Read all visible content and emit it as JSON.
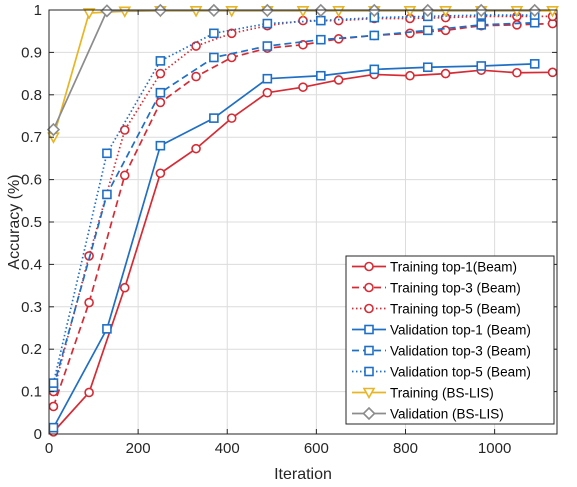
{
  "chart_data": {
    "type": "line",
    "xlabel": "Iteration",
    "ylabel": "Accuracy (%)",
    "xlim": [
      0,
      1140
    ],
    "ylim": [
      0,
      1
    ],
    "xticks": [
      0,
      200,
      400,
      600,
      800,
      1000
    ],
    "yticks": [
      0,
      0.1,
      0.2,
      0.3,
      0.4,
      0.5,
      0.6,
      0.7,
      0.8,
      0.9,
      1
    ],
    "grid": true,
    "legend_position": "bottom-right",
    "colors": {
      "training_beam": "#d62b34",
      "validation_beam": "#1f6fc4",
      "training_bslis": "#e8b523",
      "validation_bslis": "#8c8c8c"
    },
    "series": [
      {
        "name": "Training top-1(Beam)",
        "color": "#d62b34",
        "line_style": "solid",
        "marker": "circle",
        "x": [
          10,
          90,
          170,
          250,
          330,
          410,
          490,
          570,
          650,
          730,
          810,
          890,
          970,
          1050,
          1130
        ],
        "y": [
          0.005,
          0.098,
          0.345,
          0.615,
          0.673,
          0.745,
          0.805,
          0.818,
          0.835,
          0.848,
          0.845,
          0.85,
          0.858,
          0.852,
          0.853
        ]
      },
      {
        "name": "Training top-3 (Beam)",
        "color": "#d62b34",
        "line_style": "dashed",
        "marker": "circle",
        "x": [
          10,
          90,
          170,
          250,
          330,
          410,
          490,
          570,
          650,
          730,
          810,
          890,
          970,
          1050,
          1130
        ],
        "y": [
          0.065,
          0.31,
          0.61,
          0.782,
          0.843,
          0.888,
          0.91,
          0.918,
          0.932,
          0.94,
          0.945,
          0.952,
          0.963,
          0.965,
          0.968
        ]
      },
      {
        "name": "Training top-5 (Beam)",
        "color": "#d62b34",
        "line_style": "dotted",
        "marker": "circle",
        "x": [
          10,
          90,
          170,
          250,
          330,
          410,
          490,
          570,
          650,
          730,
          810,
          890,
          970,
          1050,
          1130
        ],
        "y": [
          0.1,
          0.42,
          0.717,
          0.85,
          0.915,
          0.945,
          0.963,
          0.975,
          0.975,
          0.98,
          0.98,
          0.982,
          0.985,
          0.985,
          0.985
        ]
      },
      {
        "name": "Validation top-1 (Beam)",
        "color": "#1f6fc4",
        "line_style": "solid",
        "marker": "square",
        "x": [
          10,
          130,
          250,
          370,
          490,
          610,
          730,
          850,
          970,
          1090
        ],
        "y": [
          0.015,
          0.248,
          0.68,
          0.745,
          0.838,
          0.845,
          0.86,
          0.865,
          0.868,
          0.873
        ]
      },
      {
        "name": "Validation top-3 (Beam)",
        "color": "#1f6fc4",
        "line_style": "dashed",
        "marker": "square",
        "x": [
          10,
          130,
          250,
          370,
          490,
          610,
          730,
          850,
          970,
          1090
        ],
        "y": [
          0.11,
          0.565,
          0.805,
          0.888,
          0.915,
          0.93,
          0.94,
          0.952,
          0.965,
          0.97
        ]
      },
      {
        "name": "Validation top-5 (Beam)",
        "color": "#1f6fc4",
        "line_style": "dotted",
        "marker": "square",
        "x": [
          10,
          130,
          250,
          370,
          490,
          610,
          730,
          850,
          970,
          1090
        ],
        "y": [
          0.12,
          0.662,
          0.88,
          0.945,
          0.968,
          0.975,
          0.982,
          0.985,
          0.988,
          0.988
        ]
      },
      {
        "name": "Training (BS-LIS)",
        "color": "#e8b523",
        "line_style": "solid",
        "marker": "triangle-down",
        "x": [
          10,
          90,
          170,
          250,
          330,
          410,
          490,
          570,
          650,
          730,
          810,
          890,
          970,
          1050,
          1130
        ],
        "y": [
          0.7,
          0.993,
          0.997,
          0.998,
          0.998,
          0.998,
          0.998,
          0.998,
          0.998,
          0.998,
          0.998,
          0.998,
          0.998,
          0.998,
          0.998
        ]
      },
      {
        "name": "Validation (BS-LIS)",
        "color": "#8c8c8c",
        "line_style": "solid",
        "marker": "diamond",
        "x": [
          10,
          130,
          250,
          370,
          490,
          610,
          730,
          850,
          970,
          1090
        ],
        "y": [
          0.718,
          0.998,
          0.999,
          0.999,
          0.999,
          0.999,
          0.999,
          0.999,
          0.999,
          0.999
        ]
      }
    ]
  }
}
